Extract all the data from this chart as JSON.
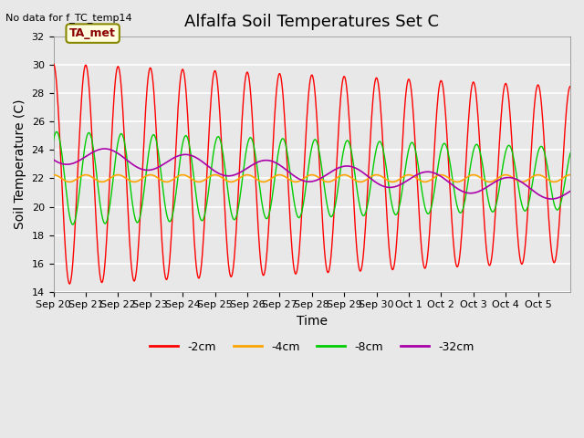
{
  "title": "Alfalfa Soil Temperatures Set C",
  "xlabel": "Time",
  "ylabel": "Soil Temperature (C)",
  "no_data_text": "No data for f_TC_temp14",
  "ta_met_label": "TA_met",
  "ylim": [
    14,
    32
  ],
  "x_tick_labels": [
    "Sep 20",
    "Sep 21",
    "Sep 22",
    "Sep 23",
    "Sep 24",
    "Sep 25",
    "Sep 26",
    "Sep 27",
    "Sep 28",
    "Sep 29",
    "Sep 30",
    "Oct 1",
    "Oct 2",
    "Oct 3",
    "Oct 4",
    "Oct 5"
  ],
  "legend_entries": [
    "-2cm",
    "-4cm",
    "-8cm",
    "-32cm"
  ],
  "legend_colors": [
    "#ff0000",
    "#ffa500",
    "#00cc00",
    "#aa00aa"
  ],
  "background_color": "#e8e8e8",
  "grid_color": "#ffffff",
  "title_fontsize": 13,
  "axis_label_fontsize": 10,
  "tick_fontsize": 8
}
